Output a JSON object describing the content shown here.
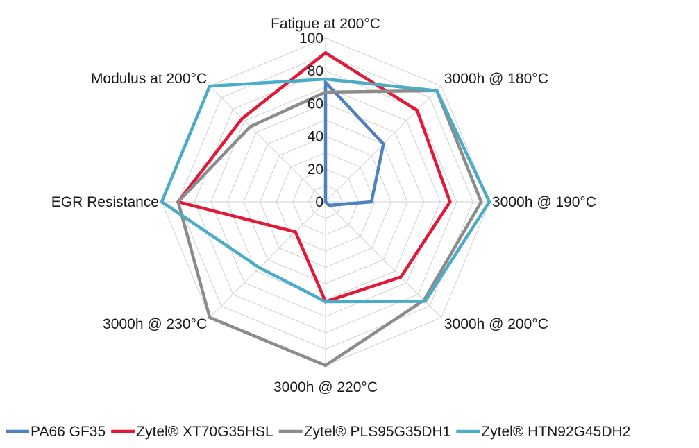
{
  "chart_data": {
    "type": "radar",
    "title": "",
    "categories": [
      "Fatigue at 200°C",
      "3000h @ 180°C",
      "3000h @ 190°C",
      "3000h @ 200°C",
      "3000h @ 220°C",
      "3000h @ 230°C",
      "EGR Resistance",
      "Modulus at 200°C"
    ],
    "rlim": [
      0,
      100
    ],
    "ticks": [
      "0",
      "20",
      "40",
      "60",
      "80",
      "100"
    ],
    "tick_values": [
      0,
      20,
      40,
      60,
      80,
      100
    ],
    "grid": true,
    "legend_position": "bottom",
    "series": [
      {
        "name": "PA66 GF35",
        "color": "#4f81bd",
        "values": [
          73,
          50,
          28,
          3,
          0,
          0,
          0,
          0
        ]
      },
      {
        "name": "Zytel® XT70G35HSL",
        "color": "#e31837",
        "values": [
          91,
          79,
          76,
          65,
          61,
          26,
          90,
          72
        ]
      },
      {
        "name": "Zytel® PLS95G35DH1",
        "color": "#8c8c8c",
        "values": [
          67,
          96,
          95,
          85,
          100,
          100,
          90,
          65
        ]
      },
      {
        "name": "Zytel® HTN92G45DH2",
        "color": "#4bacc6",
        "values": [
          75,
          96,
          100,
          86,
          61,
          57,
          100,
          100
        ]
      }
    ]
  }
}
